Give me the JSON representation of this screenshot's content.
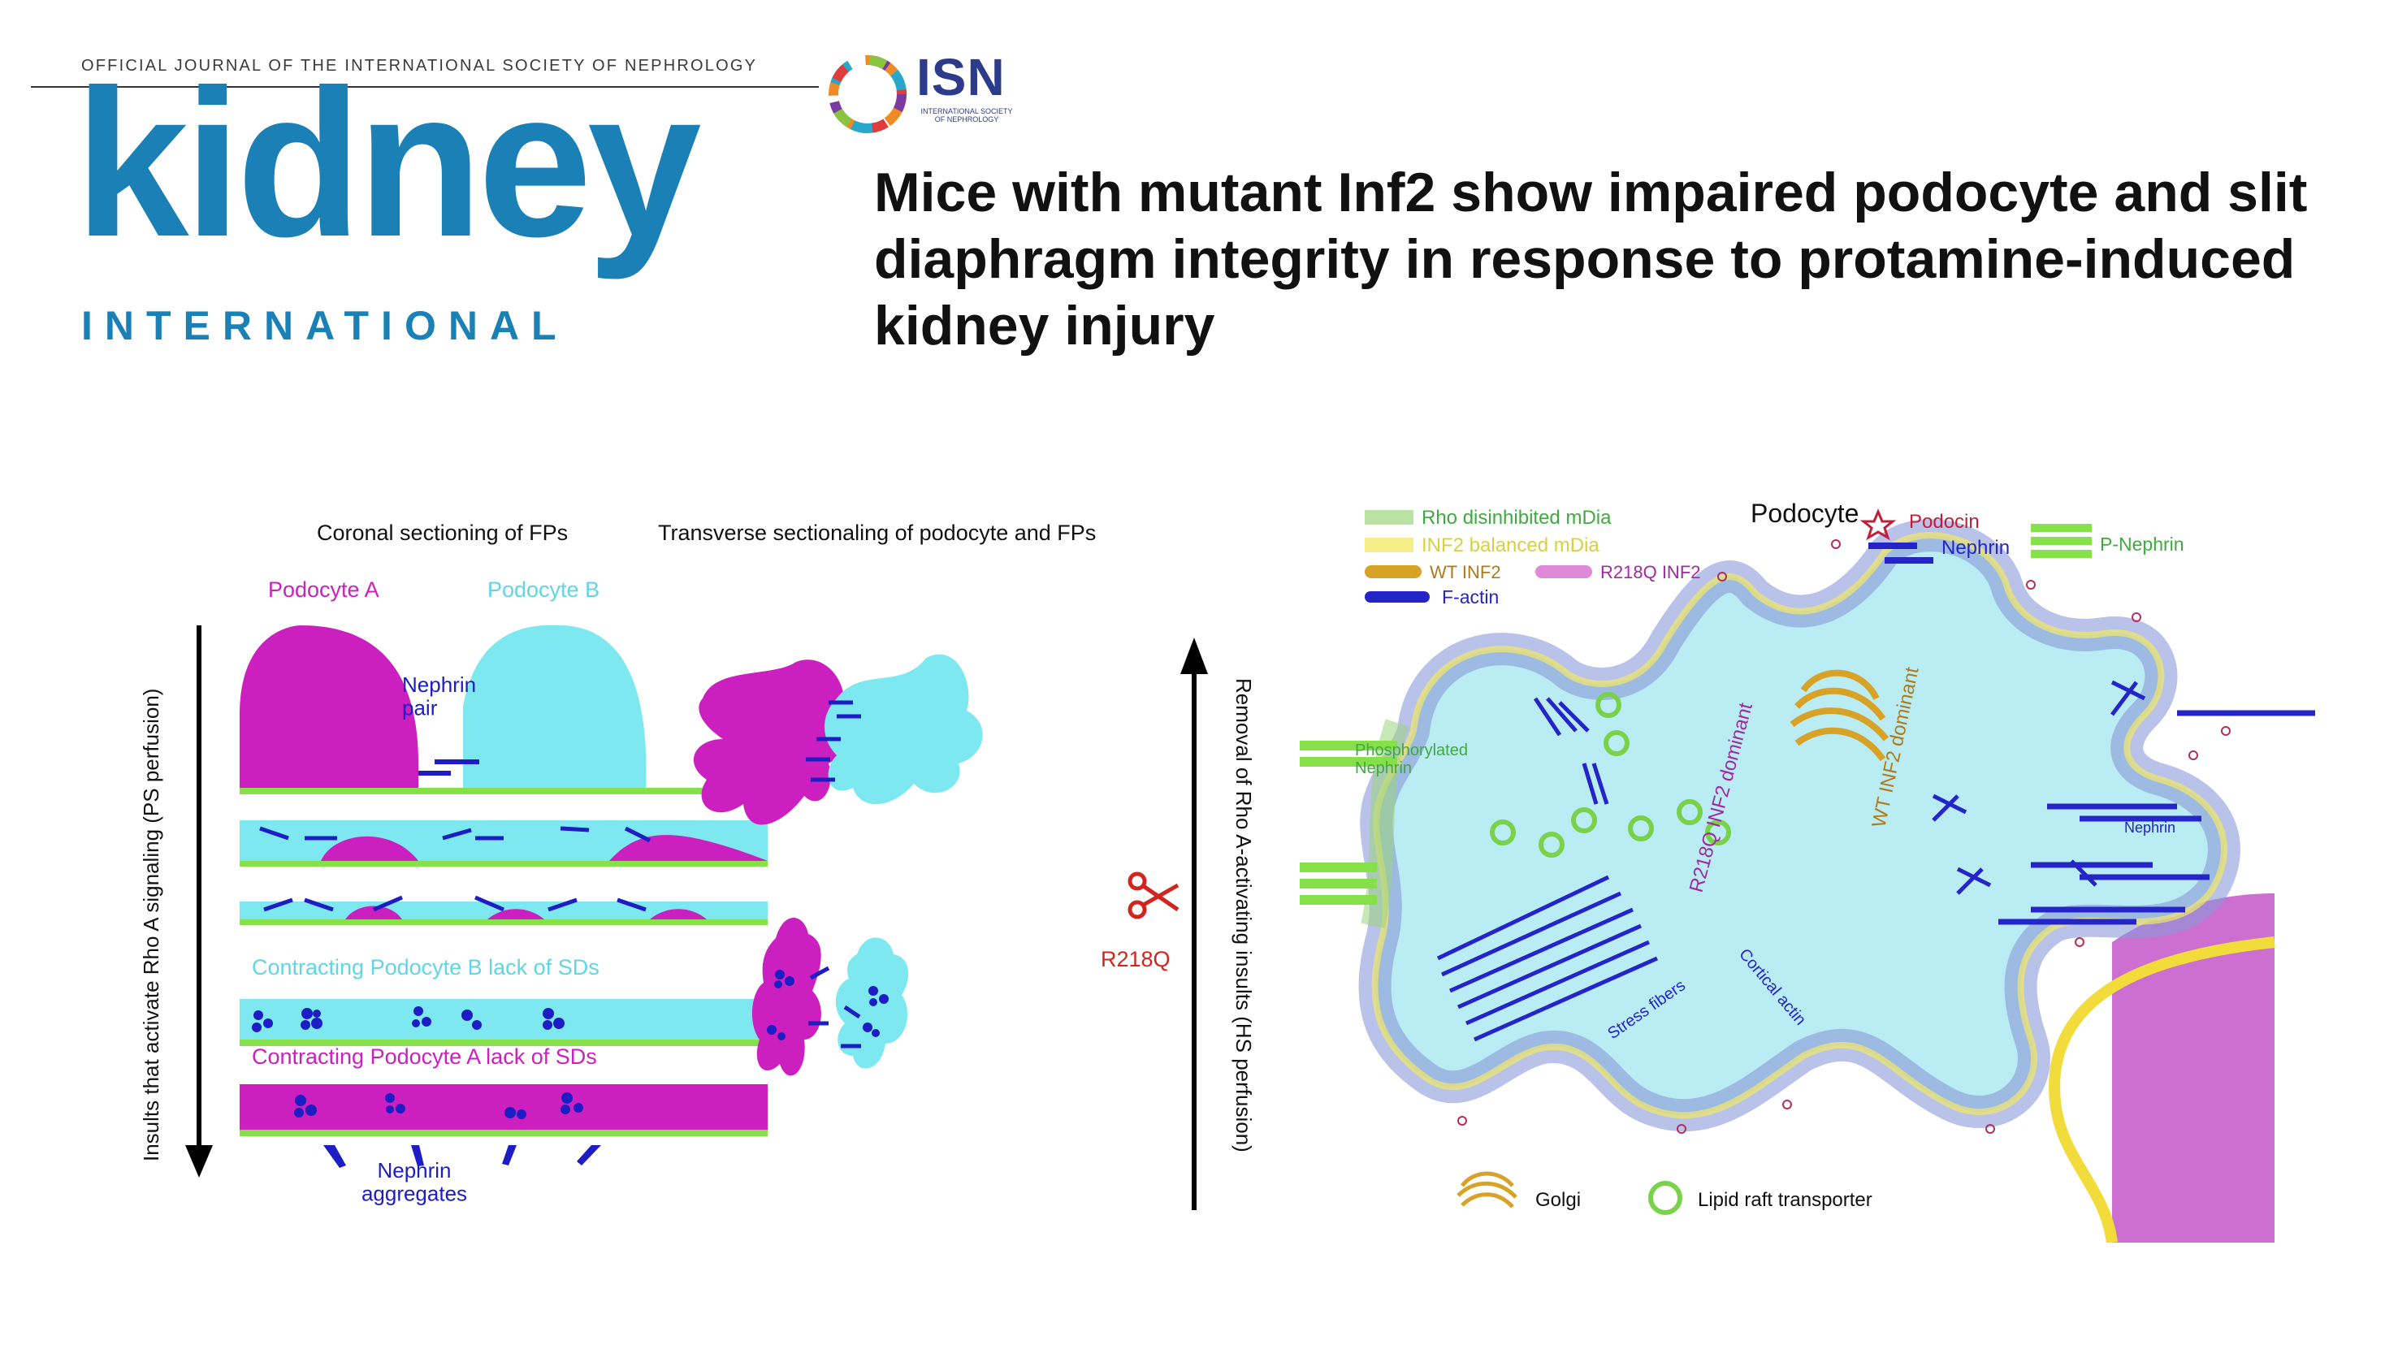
{
  "journal": {
    "tagline": "OFFICIAL JOURNAL OF THE INTERNATIONAL SOCIETY OF NEPHROLOGY",
    "logo_word": "kidney",
    "logo_sub": "INTERNATIONAL",
    "isn_logo": "ISN",
    "isn_sub": "INTERNATIONAL SOCIETY OF NEPHROLOGY",
    "brand_color": "#1b80b5"
  },
  "title": "Mice with mutant Inf2 show impaired podocyte and slit diaphragm integrity in response to protamine-induced kidney injury",
  "left_panel": {
    "header_coronal": "Coronal sectioning of FPs",
    "header_transverse": "Transverse sectionaling of podocyte and FPs",
    "podocyte_a": "Podocyte A",
    "podocyte_b": "Podocyte B",
    "nephrin_pair": "Nephrin\npair",
    "contracting_b": "Contracting Podocyte B lack of SDs",
    "contracting_a": "Contracting Podocyte A lack of SDs",
    "nephrin_aggregates": "Nephrin\naggregates",
    "left_axis": "Insults that activate Rho A signaling (PS perfusion)",
    "right_axis": "Removal of Rho A-activating insults (HS perfusion)",
    "mutation": "R218Q",
    "colors": {
      "podocyte_a": "#cc1fbf",
      "podocyte_b": "#7ee8f0",
      "gbm": "#86e04a",
      "nephrin": "#1d1dc4"
    }
  },
  "right_panel": {
    "legend": {
      "rho": "Rho disinhibited mDia",
      "inf2_balanced": "INF2 balanced mDia",
      "wt_inf2": "WT INF2",
      "r218q_inf2": "R218Q INF2",
      "factin": "F-actin",
      "podocyte": "Podocyte",
      "podocin": "Podocin",
      "nephrin": "Nephrin",
      "p_nephrin": "P-Nephrin",
      "golgi": "Golgi",
      "lipid_raft": "Lipid raft transporter"
    },
    "labels": {
      "phospho": "Phosphorylated\nNephrin",
      "r218q_dominant": "R218Q INF2 dominant",
      "wt_dominant": "WT INF2 dominant",
      "stress_fibers": "Stress fibers",
      "cortical_actin": "Cortical actin",
      "nephrin_inner": "Nephrin"
    }
  }
}
